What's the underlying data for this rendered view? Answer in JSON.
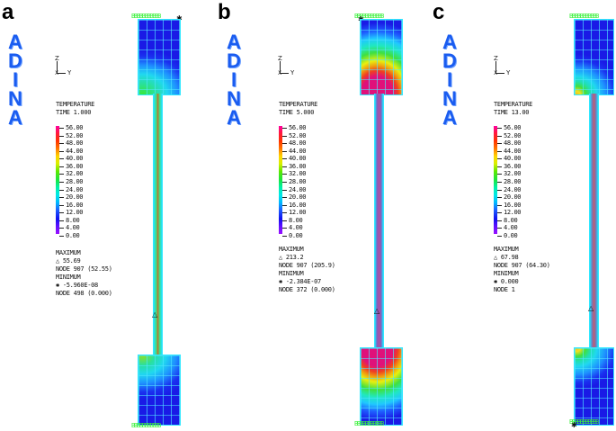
{
  "figure": {
    "software_logo": [
      "A",
      "D",
      "I",
      "N",
      "A"
    ],
    "axis_labels": {
      "z": "Z",
      "x": "X",
      "y": "Y"
    },
    "legend_values": [
      "56.00",
      "52.00",
      "48.00",
      "44.00",
      "40.00",
      "36.00",
      "32.00",
      "28.00",
      "24.00",
      "20.00",
      "16.00",
      "12.00",
      "8.00",
      "4.00",
      "0.00"
    ],
    "boundary_condition_label": "BBBBBBBBBBB",
    "max_marker": "△",
    "min_marker": "✱"
  },
  "panels": [
    {
      "letter": "a",
      "title": "TEMPERATURE",
      "time": "TIME 1.000",
      "maximum_label": "MAXIMUM",
      "maximum_value": "△  55.69",
      "maximum_node": "NODE 907 (52.55)",
      "minimum_label": "MINIMUM",
      "minimum_value": "✱  -5.960E-08",
      "minimum_node": "NODE 498 (0.000)",
      "colors": {
        "top_block": "#1a1ae6",
        "bottom_block": "#1a1ae6",
        "hot": "#38e838",
        "rod": "#c0a020"
      }
    },
    {
      "letter": "b",
      "title": "TEMPERATURE",
      "time": "TIME 5.000",
      "maximum_label": "MAXIMUM",
      "maximum_value": "△  213.2",
      "maximum_node": "NODE 907 (205.9)",
      "minimum_label": "MINIMUM",
      "minimum_value": "✱  -2.384E-07",
      "minimum_node": "NODE 372 (0.000)",
      "colors": {
        "top_block": "#1a1ae6",
        "bottom_block": "#1a1ae6",
        "hot": "#e0107a",
        "rod": "#a050b0"
      }
    },
    {
      "letter": "c",
      "title": "TEMPERATURE",
      "time": "TIME 13.00",
      "maximum_label": "MAXIMUM",
      "maximum_value": "△  67.98",
      "maximum_node": "NODE 907 (64.30)",
      "minimum_label": "MINIMUM",
      "minimum_value": "✱  0.000",
      "minimum_node": "NODE 1",
      "colors": {
        "top_block": "#1a1ae6",
        "bottom_block": "#1a1ae6",
        "hot": "#f0e020",
        "rod": "#a070a0"
      }
    }
  ]
}
